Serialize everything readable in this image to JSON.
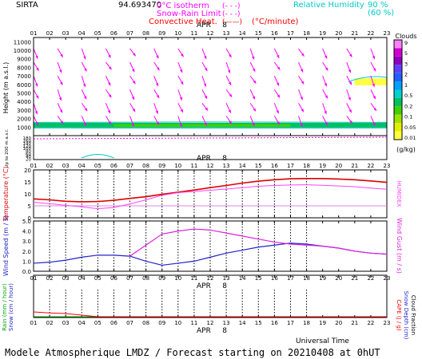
{
  "header": {
    "site": "SIRTA",
    "coords": "94.6934",
    "coords_suffix": "70",
    "legend": [
      {
        "label": "0°C isotherm",
        "sample": "(- - -)",
        "color": "#ff00ff"
      },
      {
        "label": "Snow-Rain Limit",
        "sample": "(- - -)",
        "color": "#ff00ff"
      },
      {
        "label": "Convective Heat.",
        "sample": "(——)",
        "unit": "(°C/minute)",
        "color": "#ff0000"
      }
    ],
    "rh_label": "Relative Humidity",
    "rh_values": [
      "90 %",
      "(60 %)"
    ],
    "rh_color": "#00c8c8"
  },
  "time_axis": {
    "hours": [
      "01",
      "02",
      "03",
      "04",
      "05",
      "06",
      "07",
      "08",
      "09",
      "10",
      "11",
      "12",
      "13",
      "14",
      "15",
      "16",
      "17",
      "18",
      "19",
      "20",
      "21",
      "22",
      "23"
    ],
    "date_label": "APR",
    "date_day": "8",
    "bottom_label": "Universal Time"
  },
  "footer": "Modele Atmospherique LMDZ / Forecast starting on 20210408 at 0hUT",
  "colors": {
    "temperature": "#dd0000",
    "humidex": "#ff44ff",
    "wind_speed": "#2222cc",
    "wind_gust": "#dd22dd",
    "rain": "#00aa00",
    "snow": "#2222cc",
    "cape": "#ff0000",
    "snow_depth": "#2222cc",
    "wind_arrows": "#ff00ff",
    "rh_contour": "#00c8c8"
  },
  "chart_data": [
    {
      "id": "clouds-wind",
      "type": "heatmap",
      "ylabel": "Height (m a.s.l.)",
      "ylabel_low": "Up to 200 m a.s.l.",
      "upper_yticks": [
        "11000",
        "10000",
        "9000",
        "8000",
        "7000",
        "6000",
        "5000",
        "4000",
        "3000",
        "2000",
        "1000"
      ],
      "lower_yticks": [
        "180",
        "160",
        "140",
        "120",
        "100",
        "80",
        "60",
        "40",
        "20"
      ],
      "colorbar": {
        "title": "Clouds",
        "unit": "(g/kg)",
        "ticks": [
          "9",
          "5",
          "3",
          "2",
          "1",
          "0.5",
          "0.2",
          "0.1",
          "0.05",
          "0.01"
        ],
        "colors": [
          "#ff80ff",
          "#d000d0",
          "#9000c0",
          "#6040ff",
          "#2060ff",
          "#00a0ff",
          "#00d0d0",
          "#00c060",
          "#40d000",
          "#a0e000",
          "#e0f000",
          "#ffff40"
        ]
      },
      "cloud_layers": [
        {
          "from": 1,
          "to": 23,
          "z_low": 950,
          "z_high": 1500,
          "color": "#00c060"
        },
        {
          "from": 6,
          "to": 17,
          "z_low": 1050,
          "z_high": 1350,
          "color": "#40d000"
        },
        {
          "from": 21,
          "to": 23,
          "z_low": 5900,
          "z_high": 6700,
          "color": "#ffff40"
        }
      ],
      "wind_arrows": [
        {
          "hour": 1,
          "z": [
            10000,
            8000,
            6000,
            4000,
            2000
          ],
          "dir_deg": 30
        },
        {
          "hour": 23,
          "z": [
            10000,
            8000,
            6000,
            4000,
            2000
          ],
          "dir_deg": 35
        }
      ]
    },
    {
      "id": "temperature",
      "type": "line",
      "ylabel": "Temperature (°C)",
      "y2label": "HUMIDEX",
      "ylim": [
        0,
        20
      ],
      "yticks": [
        0,
        5,
        10,
        15,
        20
      ],
      "x": [
        1,
        2,
        3,
        4,
        5,
        6,
        7,
        8,
        9,
        10,
        11,
        12,
        13,
        14,
        15,
        16,
        17,
        18,
        19,
        20,
        21,
        22,
        23
      ],
      "series": [
        {
          "key": "temperature",
          "values": [
            7.9,
            7.5,
            6.9,
            6.7,
            6.8,
            7.3,
            8.1,
            8.8,
            9.8,
            10.7,
            11.6,
            12.6,
            13.5,
            14.5,
            15.3,
            15.9,
            16.3,
            16.4,
            16.4,
            16.2,
            15.9,
            15.4,
            14.8
          ]
        },
        {
          "key": "humidex",
          "values": [
            6.5,
            5.9,
            5.2,
            4.6,
            3.8,
            4.3,
            5.8,
            7.5,
            9.4,
            10.5,
            11.0,
            11.5,
            12.0,
            12.6,
            13.2,
            13.5,
            13.7,
            13.8,
            13.6,
            13.3,
            13.0,
            12.4,
            11.9
          ]
        }
      ]
    },
    {
      "id": "wind",
      "type": "line",
      "ylabel": "Wind Speed (m / s)",
      "y2label": "Wind Gust (m / s)",
      "ylim": [
        0,
        5
      ],
      "yticks": [
        "0.0",
        "1.0",
        "2.0",
        "3.0",
        "4.0",
        "5.0"
      ],
      "x": [
        1,
        2,
        3,
        4,
        5,
        6,
        7,
        8,
        9,
        10,
        11,
        12,
        13,
        14,
        15,
        16,
        17,
        18,
        19,
        20,
        21,
        22,
        23
      ],
      "series": [
        {
          "key": "wind_speed",
          "values": [
            0.8,
            0.9,
            1.1,
            1.4,
            1.6,
            1.6,
            1.5,
            1.0,
            0.6,
            0.8,
            1.0,
            1.4,
            1.8,
            2.1,
            2.4,
            2.6,
            2.8,
            2.7,
            2.5,
            2.3,
            2.0,
            1.8,
            1.7
          ]
        },
        {
          "key": "wind_gust",
          "values": [
            null,
            null,
            null,
            null,
            null,
            null,
            1.5,
            2.6,
            3.7,
            4.0,
            4.2,
            4.1,
            3.8,
            3.5,
            3.2,
            2.9,
            2.7,
            2.6,
            2.5,
            2.3,
            2.0,
            1.8,
            1.7
          ]
        }
      ]
    },
    {
      "id": "precipitation",
      "type": "line",
      "ylabel_left": [
        "Rain (mm / hour)",
        "Snow (cm / hour)"
      ],
      "ylabel_right": [
        "CAPE (J / g)",
        "Snow Depth (cm)",
        "Cloud Fraction"
      ],
      "x": [
        1,
        2,
        3,
        4,
        5,
        6,
        7,
        8,
        9,
        10,
        11,
        12,
        13,
        14,
        15,
        16,
        17,
        18,
        19,
        20,
        21,
        22,
        23
      ],
      "series": [
        {
          "key": "rain",
          "values": [
            0,
            0,
            0,
            0,
            0,
            0,
            0,
            0,
            0,
            0,
            0,
            0,
            0,
            0,
            0,
            0,
            0,
            0,
            0,
            0,
            0,
            0,
            0
          ]
        },
        {
          "key": "cape",
          "values": [
            0.15,
            0.12,
            0.1,
            0.05,
            0,
            0,
            0,
            0,
            0,
            0,
            0,
            0,
            0,
            0,
            0,
            0,
            0,
            0,
            0,
            0,
            0,
            0,
            0
          ]
        }
      ]
    }
  ]
}
